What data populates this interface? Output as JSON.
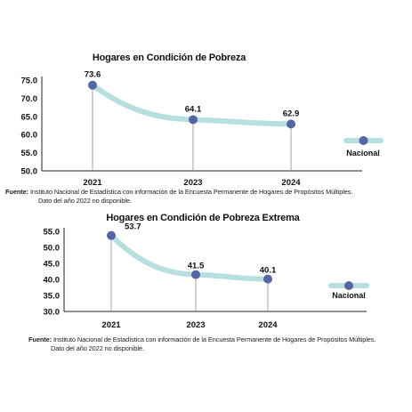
{
  "colors": {
    "line": "#b6dfe0",
    "marker": "#5565a8",
    "axis": "#222222",
    "droplines": "#8a8a8a"
  },
  "charts": [
    {
      "source_label": "Fuente:",
      "source_text_1": "Instituto Nacional de Estadística con información de la Encuesta Permanente de Hogares de Propósitos Múltiples.",
      "source_text_2": "Dato del año 2022 no disponible."
    },
    {
      "source_label": "Fuente:",
      "source_text_1": "Instituto Nacional de Estadística con información de la Encuesta Permanente de Hogares de Propósitos Múltiples.",
      "source_text_2": "Dato del año 2022 no disponible."
    }
  ],
  "chart_data": [
    {
      "type": "line",
      "title": "Hogares en Condición de Pobreza",
      "x": [
        "2021",
        "2023",
        "2024"
      ],
      "series": [
        {
          "name": "Nacional",
          "values": [
            73.6,
            64.1,
            62.9
          ]
        }
      ],
      "ylim": [
        50.0,
        75.0
      ],
      "yticks": [
        "75.0",
        "70.0",
        "65.0",
        "60.0",
        "55.0",
        "50.0"
      ],
      "data_labels": [
        "73.6",
        "64.1",
        "62.9"
      ],
      "legend": "right",
      "grid": false
    },
    {
      "type": "line",
      "title": "Hogares en Condición de Pobreza Extrema",
      "x": [
        "2021",
        "2023",
        "2024"
      ],
      "series": [
        {
          "name": "Nacional",
          "values": [
            53.7,
            41.5,
            40.1
          ]
        }
      ],
      "ylim": [
        30.0,
        55.0
      ],
      "yticks": [
        "55.0",
        "50.0",
        "45.0",
        "40.0",
        "35.0",
        "30.0"
      ],
      "data_labels": [
        "53.7",
        "41.5",
        "40.1"
      ],
      "legend": "right",
      "grid": false
    }
  ]
}
